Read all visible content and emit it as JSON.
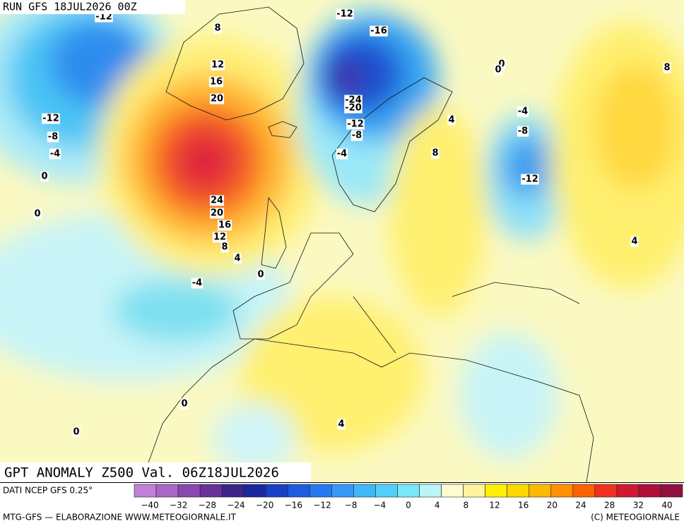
{
  "header": {
    "run": "RUN GFS 18JUL2026 00Z"
  },
  "map": {
    "title": "GPT ANOMALY Z500 Val. 06Z18JUL2026",
    "contour_labels": [
      "-12",
      "8",
      "12",
      "16",
      "20",
      "-12",
      "-8",
      "-4",
      "0",
      "0",
      "24",
      "20",
      "16",
      "12",
      "8",
      "4",
      "0",
      "-4",
      "-12",
      "-16",
      "0",
      "0",
      "8",
      "-24",
      "-20",
      "-12",
      "-8",
      "4",
      "-4",
      "-8",
      "-4",
      "8",
      "-12",
      "4",
      "0",
      "0",
      "4"
    ]
  },
  "colorbar": {
    "source": "DATI NCEP GFS 0.25°",
    "tick_labels": [
      "−40",
      "−32",
      "−28",
      "−24",
      "−20",
      "−16",
      "−12",
      "−8",
      "−4",
      "0",
      "4",
      "8",
      "12",
      "16",
      "20",
      "24",
      "28",
      "32",
      "40"
    ]
  },
  "footer": {
    "left": "MTG-GFS — ELABORAZIONE WWW.METEOGIORNALE.IT",
    "right": "(C) METEOGIORNALE"
  }
}
